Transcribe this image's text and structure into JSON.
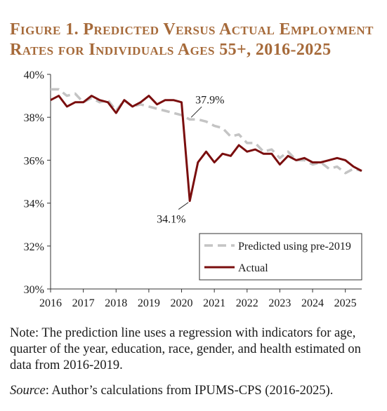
{
  "figure": {
    "title_line1": "Figure 1. Predicted Versus Actual Employment",
    "title_line2": "Rates for Individuals Ages 55+, 2016-2025",
    "note": "Note: The prediction line uses a regression with indicators for age, quarter of the year, education, race, gender, and health estimated on data from 2016-2019.",
    "source_label": "Source",
    "source_text": ": Author’s calculations from IPUMS-CPS (2016-2025)."
  },
  "colors": {
    "actual": "#7a0e0e",
    "predicted": "#c4c4c4",
    "axis": "#333333"
  },
  "chart_data": {
    "type": "line",
    "title": "Predicted Versus Actual Employment Rates for Individuals Ages 55+, 2016-2025",
    "xlabel": "",
    "ylabel": "",
    "xlim": [
      2016,
      2025.5
    ],
    "ylim": [
      30,
      40
    ],
    "y_ticks": [
      30,
      32,
      34,
      36,
      38,
      40
    ],
    "y_tick_labels": [
      "30%",
      "32%",
      "34%",
      "36%",
      "38%",
      "40%"
    ],
    "x_ticks": [
      2016,
      2017,
      2018,
      2019,
      2020,
      2021,
      2022,
      2023,
      2024,
      2025
    ],
    "x_tick_labels": [
      "2016",
      "2017",
      "2018",
      "2019",
      "2020",
      "2021",
      "2022",
      "2023",
      "2024",
      "2025"
    ],
    "grid": false,
    "legend_position": "bottom-right",
    "x": [
      2016.0,
      2016.25,
      2016.5,
      2016.75,
      2017.0,
      2017.25,
      2017.5,
      2017.75,
      2018.0,
      2018.25,
      2018.5,
      2018.75,
      2019.0,
      2019.25,
      2019.5,
      2019.75,
      2020.0,
      2020.25,
      2020.5,
      2020.75,
      2021.0,
      2021.25,
      2021.5,
      2021.75,
      2022.0,
      2022.25,
      2022.5,
      2022.75,
      2023.0,
      2023.25,
      2023.5,
      2023.75,
      2024.0,
      2024.25,
      2024.5,
      2024.75,
      2025.0,
      2025.25,
      2025.5
    ],
    "series": [
      {
        "name": "Predicted using pre-2019",
        "values": [
          39.3,
          39.3,
          39.0,
          39.1,
          38.7,
          38.9,
          38.7,
          38.8,
          38.3,
          38.8,
          38.5,
          38.6,
          38.5,
          38.4,
          38.3,
          38.2,
          38.1,
          37.9,
          37.9,
          37.8,
          37.6,
          37.5,
          37.1,
          37.2,
          36.8,
          36.8,
          36.4,
          36.5,
          36.1,
          36.4,
          36.0,
          36.0,
          35.8,
          35.9,
          35.6,
          35.7,
          35.4,
          35.6,
          35.5
        ]
      },
      {
        "name": "Actual",
        "values": [
          38.8,
          39.0,
          38.5,
          38.7,
          38.7,
          39.0,
          38.8,
          38.7,
          38.2,
          38.8,
          38.5,
          38.7,
          39.0,
          38.6,
          38.8,
          38.8,
          38.7,
          34.1,
          35.9,
          36.4,
          35.9,
          36.3,
          36.2,
          36.7,
          36.4,
          36.5,
          36.3,
          36.3,
          35.8,
          36.2,
          36.0,
          36.1,
          35.9,
          35.9,
          36.0,
          36.1,
          36.0,
          35.7,
          35.5
        ]
      }
    ],
    "annotations": [
      {
        "text": "37.9%",
        "x": 2020.25,
        "y": 37.9
      },
      {
        "text": "34.1%",
        "x": 2020.25,
        "y": 34.1
      }
    ]
  }
}
